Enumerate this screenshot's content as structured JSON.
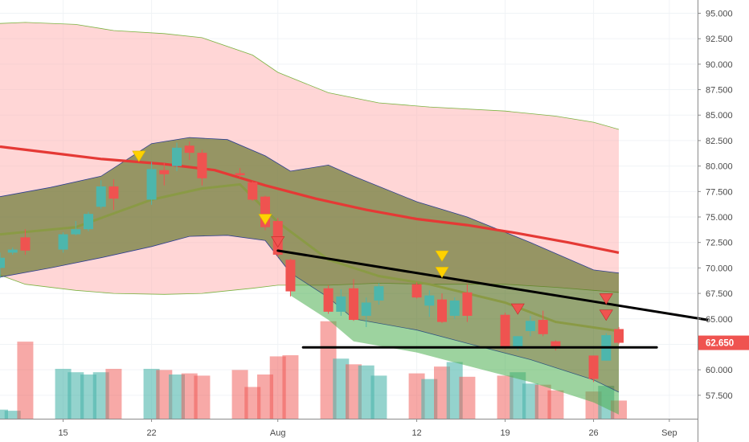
{
  "chart_data": {
    "type": "candlestick",
    "y_axis": {
      "range": [
        55.2,
        96.3
      ],
      "tick_labels": [
        "57.500",
        "60.000",
        "62.500",
        "65.000",
        "67.500",
        "70.000",
        "72.500",
        "75.000",
        "77.500",
        "80.000",
        "82.500",
        "85.000",
        "87.500",
        "90.000",
        "92.500",
        "95.000"
      ],
      "position": "right"
    },
    "x_axis": {
      "start_date": "2019-07-10",
      "end_date": "2019-09-04",
      "tick_labels": [
        {
          "label": "15",
          "date": "2019-07-15"
        },
        {
          "label": "22",
          "date": "2019-07-22"
        },
        {
          "label": "Aug",
          "date": "2019-08-01"
        },
        {
          "label": "12",
          "date": "2019-08-12"
        },
        {
          "label": "19",
          "date": "2019-08-19"
        },
        {
          "label": "26",
          "date": "2019-08-26"
        },
        {
          "label": "Sep",
          "date": "2019-09-01"
        }
      ]
    },
    "last_price": {
      "label": "62.650",
      "value": 62.65,
      "color": "#ef5350"
    },
    "colors": {
      "up": "#4db6ac",
      "down": "#ef5350",
      "ma": "#e53935",
      "inner_band": "#6b7b2a",
      "outer_band": "#ffcdd2",
      "marker_yellow": "#ffd200",
      "marker_red": "#ef5350",
      "line_color": "#000000"
    },
    "candles": [
      {
        "date": "2019-07-10",
        "o": 70.0,
        "h": 71.5,
        "l": 69.0,
        "c": 71.0,
        "vol": 0.08
      },
      {
        "date": "2019-07-11",
        "o": 71.5,
        "h": 72.0,
        "l": 71.3,
        "c": 71.8,
        "vol": 0.07
      },
      {
        "date": "2019-07-12",
        "o": 73.0,
        "h": 73.8,
        "l": 71.3,
        "c": 71.7,
        "vol": 0.68
      },
      {
        "date": "2019-07-15",
        "o": 71.8,
        "h": 73.5,
        "l": 71.5,
        "c": 73.3,
        "vol": 0.44
      },
      {
        "date": "2019-07-16",
        "o": 73.3,
        "h": 74.6,
        "l": 73.2,
        "c": 73.8,
        "vol": 0.41
      },
      {
        "date": "2019-07-17",
        "o": 73.8,
        "h": 75.5,
        "l": 73.6,
        "c": 75.3,
        "vol": 0.39
      },
      {
        "date": "2019-07-18",
        "o": 76.0,
        "h": 78.6,
        "l": 75.8,
        "c": 78.0,
        "vol": 0.41
      },
      {
        "date": "2019-07-19",
        "o": 78.0,
        "h": 78.7,
        "l": 75.7,
        "c": 76.8,
        "vol": 0.44
      },
      {
        "date": "2019-07-22",
        "o": 76.7,
        "h": 80.4,
        "l": 76.2,
        "c": 79.7,
        "vol": 0.44
      },
      {
        "date": "2019-07-23",
        "o": 79.6,
        "h": 80.3,
        "l": 78.1,
        "c": 79.2,
        "vol": 0.43
      },
      {
        "date": "2019-07-24",
        "o": 80.0,
        "h": 82.3,
        "l": 79.5,
        "c": 81.8,
        "vol": 0.39
      },
      {
        "date": "2019-07-25",
        "o": 82.0,
        "h": 82.4,
        "l": 80.6,
        "c": 81.3,
        "vol": 0.4
      },
      {
        "date": "2019-07-26",
        "o": 81.3,
        "h": 81.6,
        "l": 78.1,
        "c": 78.8,
        "vol": 0.38
      },
      {
        "date": "2019-07-29",
        "o": 79.3,
        "h": 79.8,
        "l": 78.9,
        "c": 79.1,
        "vol": 0.43
      },
      {
        "date": "2019-07-30",
        "o": 78.4,
        "h": 78.5,
        "l": 76.6,
        "c": 76.7,
        "vol": 0.28
      },
      {
        "date": "2019-07-31",
        "o": 77.0,
        "h": 77.1,
        "l": 73.7,
        "c": 74.0,
        "vol": 0.39
      },
      {
        "date": "2019-08-01",
        "o": 74.6,
        "h": 74.9,
        "l": 71.1,
        "c": 71.3,
        "vol": 0.55
      },
      {
        "date": "2019-08-02",
        "o": 70.8,
        "h": 70.9,
        "l": 67.2,
        "c": 67.7,
        "vol": 0.56
      },
      {
        "date": "2019-08-05",
        "o": 68.0,
        "h": 68.3,
        "l": 65.5,
        "c": 65.7,
        "vol": 0.86
      },
      {
        "date": "2019-08-06",
        "o": 65.7,
        "h": 67.9,
        "l": 65.3,
        "c": 67.2,
        "vol": 0.53
      },
      {
        "date": "2019-08-07",
        "o": 68.0,
        "h": 68.9,
        "l": 64.8,
        "c": 64.9,
        "vol": 0.48
      },
      {
        "date": "2019-08-08",
        "o": 65.3,
        "h": 67.1,
        "l": 64.2,
        "c": 66.6,
        "vol": 0.47
      },
      {
        "date": "2019-08-09",
        "o": 66.8,
        "h": 68.5,
        "l": 66.4,
        "c": 68.2,
        "vol": 0.38
      },
      {
        "date": "2019-08-12",
        "o": 68.4,
        "h": 68.6,
        "l": 67.0,
        "c": 67.1,
        "vol": 0.4
      },
      {
        "date": "2019-08-13",
        "o": 66.3,
        "h": 67.8,
        "l": 65.2,
        "c": 67.3,
        "vol": 0.35
      },
      {
        "date": "2019-08-14",
        "o": 66.9,
        "h": 67.5,
        "l": 64.6,
        "c": 64.7,
        "vol": 0.46
      },
      {
        "date": "2019-08-15",
        "o": 65.3,
        "h": 67.1,
        "l": 65.0,
        "c": 66.8,
        "vol": 0.5
      },
      {
        "date": "2019-08-16",
        "o": 67.6,
        "h": 68.4,
        "l": 64.7,
        "c": 65.3,
        "vol": 0.37
      },
      {
        "date": "2019-08-19",
        "o": 65.4,
        "h": 65.6,
        "l": 62.0,
        "c": 62.1,
        "vol": 0.38
      },
      {
        "date": "2019-08-20",
        "o": 62.1,
        "h": 63.3,
        "l": 61.9,
        "c": 63.3,
        "vol": 0.41
      },
      {
        "date": "2019-08-21",
        "o": 63.8,
        "h": 65.3,
        "l": 63.3,
        "c": 64.8,
        "vol": 0.31
      },
      {
        "date": "2019-08-22",
        "o": 64.9,
        "h": 65.8,
        "l": 63.3,
        "c": 63.5,
        "vol": 0.3
      },
      {
        "date": "2019-08-23",
        "o": 62.8,
        "h": 62.9,
        "l": 61.9,
        "c": 62.1,
        "vol": 0.25
      },
      {
        "date": "2019-08-26",
        "o": 61.4,
        "h": 61.4,
        "l": 58.8,
        "c": 59.1,
        "vol": 0.24
      },
      {
        "date": "2019-08-27",
        "o": 60.9,
        "h": 63.6,
        "l": 60.9,
        "c": 63.4,
        "vol": 0.29
      },
      {
        "date": "2019-08-28",
        "o": 64.0,
        "h": 64.2,
        "l": 62.5,
        "c": 62.65,
        "vol": 0.16
      }
    ],
    "moving_average": [
      {
        "date": "2019-07-10",
        "v": 81.9
      },
      {
        "date": "2019-07-14",
        "v": 81.3
      },
      {
        "date": "2019-07-18",
        "v": 80.7
      },
      {
        "date": "2019-07-23",
        "v": 80.2
      },
      {
        "date": "2019-07-27",
        "v": 79.6
      },
      {
        "date": "2019-07-31",
        "v": 78.1
      },
      {
        "date": "2019-08-04",
        "v": 76.8
      },
      {
        "date": "2019-08-08",
        "v": 75.7
      },
      {
        "date": "2019-08-12",
        "v": 74.8
      },
      {
        "date": "2019-08-16",
        "v": 74.2
      },
      {
        "date": "2019-08-20",
        "v": 73.4
      },
      {
        "date": "2019-08-24",
        "v": 72.5
      },
      {
        "date": "2019-08-28",
        "v": 71.5
      }
    ],
    "outer_band": [
      {
        "date": "2019-07-10",
        "upper": 94.0,
        "lower": 69.3
      },
      {
        "date": "2019-07-12",
        "upper": 94.1,
        "lower": 68.4
      },
      {
        "date": "2019-07-16",
        "upper": 93.9,
        "lower": 67.8
      },
      {
        "date": "2019-07-19",
        "upper": 93.3,
        "lower": 67.5
      },
      {
        "date": "2019-07-23",
        "upper": 93.0,
        "lower": 67.4
      },
      {
        "date": "2019-07-26",
        "upper": 92.6,
        "lower": 67.5
      },
      {
        "date": "2019-07-30",
        "upper": 90.9,
        "lower": 68.0
      },
      {
        "date": "2019-08-01",
        "upper": 89.2,
        "lower": 68.3
      },
      {
        "date": "2019-08-05",
        "upper": 87.2,
        "lower": 68.3
      },
      {
        "date": "2019-08-09",
        "upper": 86.2,
        "lower": 68.5
      },
      {
        "date": "2019-08-13",
        "upper": 85.8,
        "lower": 68.4
      },
      {
        "date": "2019-08-19",
        "upper": 85.4,
        "lower": 68.4
      },
      {
        "date": "2019-08-23",
        "upper": 84.9,
        "lower": 68.1
      },
      {
        "date": "2019-08-26",
        "upper": 84.3,
        "lower": 67.8
      },
      {
        "date": "2019-08-28",
        "upper": 83.6,
        "lower": 67.6
      }
    ],
    "inner_band": [
      {
        "date": "2019-07-10",
        "upper": 77.0,
        "lower": 69.1
      },
      {
        "date": "2019-07-14",
        "upper": 77.9,
        "lower": 70.0
      },
      {
        "date": "2019-07-18",
        "upper": 79.0,
        "lower": 71.0
      },
      {
        "date": "2019-07-22",
        "upper": 82.2,
        "lower": 72.1
      },
      {
        "date": "2019-07-25",
        "upper": 82.8,
        "lower": 73.1
      },
      {
        "date": "2019-07-28",
        "upper": 82.6,
        "lower": 73.2
      },
      {
        "date": "2019-07-31",
        "upper": 81.0,
        "lower": 72.7
      },
      {
        "date": "2019-08-02",
        "upper": 79.5,
        "lower": 69.5
      },
      {
        "date": "2019-08-05",
        "upper": 80.1,
        "lower": 67.1
      },
      {
        "date": "2019-08-07",
        "upper": 79.0,
        "lower": 65.0
      },
      {
        "date": "2019-08-12",
        "upper": 76.5,
        "lower": 63.9
      },
      {
        "date": "2019-08-16",
        "upper": 75.0,
        "lower": 62.6
      },
      {
        "date": "2019-08-21",
        "upper": 72.5,
        "lower": 61.0
      },
      {
        "date": "2019-08-26",
        "upper": 69.8,
        "lower": 59.0
      },
      {
        "date": "2019-08-28",
        "upper": 69.5,
        "lower": 57.8
      }
    ],
    "inner_band_mid": [
      {
        "date": "2019-07-10",
        "v": 73.3
      },
      {
        "date": "2019-07-16",
        "v": 74.0
      },
      {
        "date": "2019-07-22",
        "v": 76.7
      },
      {
        "date": "2019-07-26",
        "v": 77.8
      },
      {
        "date": "2019-07-29",
        "v": 78.2
      },
      {
        "date": "2019-08-01",
        "v": 74.5
      },
      {
        "date": "2019-08-05",
        "v": 70.8
      },
      {
        "date": "2019-08-09",
        "v": 69.2
      },
      {
        "date": "2019-08-13",
        "v": 68.4
      },
      {
        "date": "2019-08-19",
        "v": 66.6
      },
      {
        "date": "2019-08-23",
        "v": 64.7
      },
      {
        "date": "2019-08-28",
        "v": 63.8
      }
    ],
    "trend_lines": [
      {
        "from": {
          "date": "2019-08-01",
          "price": 71.7
        },
        "to": {
          "date": "2019-09-04",
          "price": 64.9
        }
      },
      {
        "from": {
          "date": "2019-08-03",
          "price": 62.2
        },
        "to": {
          "date": "2019-08-31",
          "price": 62.2
        }
      }
    ],
    "markers": [
      {
        "date": "2019-07-21",
        "price": 81.0,
        "color": "yellow"
      },
      {
        "date": "2019-07-31",
        "price": 74.8,
        "color": "yellow"
      },
      {
        "date": "2019-08-01",
        "price": 72.6,
        "color": "red"
      },
      {
        "date": "2019-08-14",
        "price": 71.2,
        "color": "yellow"
      },
      {
        "date": "2019-08-14",
        "price": 69.6,
        "color": "yellow"
      },
      {
        "date": "2019-08-20",
        "price": 66.0,
        "color": "red"
      },
      {
        "date": "2019-08-27",
        "price": 67.0,
        "color": "red"
      },
      {
        "date": "2019-08-27",
        "price": 65.4,
        "color": "red"
      }
    ]
  }
}
